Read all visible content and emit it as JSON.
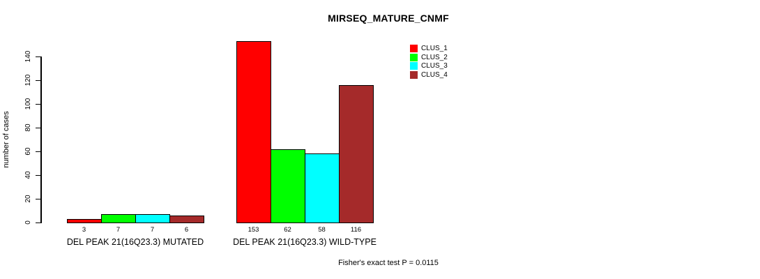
{
  "chart_data": {
    "type": "bar",
    "title": "MIRSEQ_MATURE_CNMF",
    "xlabel": "",
    "ylabel": "number of cases",
    "ylim": [
      0,
      140
    ],
    "yticks": [
      0,
      20,
      40,
      60,
      80,
      100,
      120,
      140
    ],
    "grid": false,
    "legend_position": "top-right",
    "bar_border_color": "#000000",
    "categories": [
      "DEL PEAK 21(16Q23.3) MUTATED",
      "DEL PEAK 21(16Q23.3) WILD-TYPE"
    ],
    "series": [
      {
        "name": "CLUS_1",
        "color": "#FF0000",
        "values": [
          3,
          153
        ]
      },
      {
        "name": "CLUS_2",
        "color": "#00FF00",
        "values": [
          7,
          62
        ]
      },
      {
        "name": "CLUS_3",
        "color": "#00FFFF",
        "values": [
          7,
          58
        ]
      },
      {
        "name": "CLUS_4",
        "color": "#A52A2A",
        "values": [
          6,
          116
        ]
      }
    ],
    "bar_value_labels": [
      [
        3,
        7,
        7,
        6
      ],
      [
        153,
        62,
        58,
        116
      ]
    ],
    "footnote": "Fisher's exact test P = 0.0115"
  }
}
